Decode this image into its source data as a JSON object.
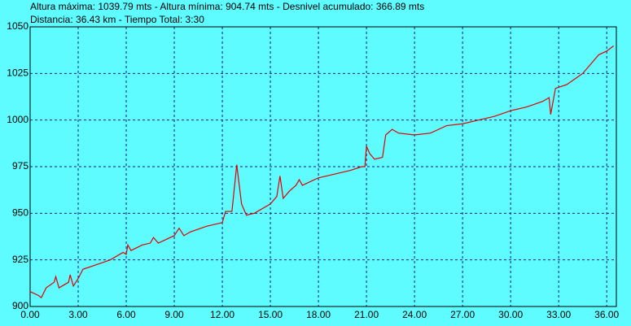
{
  "chart_data": {
    "type": "line",
    "header": [
      "Altura máxima: 1039.79 mts - Altura mínima: 904.74 mts - Desnivel acumulado: 366.89 mts",
      "Distancia: 36.43 km - Tiempo Total: 3:30"
    ],
    "x": [
      0,
      0.5,
      0.7,
      1.0,
      1.5,
      1.6,
      1.8,
      2.4,
      2.5,
      2.7,
      3.0,
      3.3,
      4,
      5,
      5.8,
      6.0,
      6.1,
      6.3,
      7,
      7.5,
      7.7,
      8,
      8.5,
      9,
      9.3,
      9.6,
      10,
      11,
      12,
      12.2,
      12.6,
      12.9,
      13.2,
      13.5,
      14,
      15,
      15.4,
      15.6,
      15.8,
      16.2,
      16.6,
      16.8,
      17,
      18,
      19,
      20,
      20.7,
      20.9,
      21.0,
      21.2,
      21.5,
      22,
      22.2,
      22.6,
      23,
      24,
      25,
      25.5,
      26,
      27,
      28,
      29,
      30,
      31,
      32,
      32.4,
      32.5,
      32.8,
      33.5,
      34,
      34.5,
      35,
      35.5,
      36,
      36.43
    ],
    "series": [
      {
        "name": "Altura",
        "color": "#e00000",
        "values": [
          908,
          906,
          904.74,
          910,
          913,
          916,
          910,
          913,
          917,
          911,
          915,
          920,
          922,
          925,
          929,
          928,
          933,
          930,
          933,
          934,
          937,
          934,
          936,
          938,
          942,
          938,
          940,
          943,
          945,
          951,
          951,
          976,
          955,
          949,
          950,
          955,
          959,
          970,
          958,
          962,
          965,
          968,
          965,
          969,
          971,
          973,
          975,
          975,
          986,
          982,
          979,
          980,
          992,
          995,
          993,
          992,
          993,
          995,
          997,
          998,
          1000,
          1002,
          1005,
          1007,
          1010,
          1012,
          1003,
          1017,
          1019,
          1022,
          1025,
          1030,
          1035,
          1037,
          1039.79
        ]
      }
    ],
    "xlim": [
      0,
      36.6
    ],
    "ylim": [
      900,
      1050
    ],
    "xticks": [
      {
        "value": 0,
        "label": "0.00"
      },
      {
        "value": 3,
        "label": "3.00"
      },
      {
        "value": 6,
        "label": "6.00"
      },
      {
        "value": 9,
        "label": "9.00"
      },
      {
        "value": 12,
        "label": "12.00"
      },
      {
        "value": 15,
        "label": "15.00"
      },
      {
        "value": 18,
        "label": "18.00"
      },
      {
        "value": 21,
        "label": "21.00"
      },
      {
        "value": 24,
        "label": "24.00"
      },
      {
        "value": 27,
        "label": "27.00"
      },
      {
        "value": 30,
        "label": "30.00"
      },
      {
        "value": 33,
        "label": "33.00"
      },
      {
        "value": 36,
        "label": "36.00"
      }
    ],
    "yticks": [
      900,
      925,
      950,
      975,
      1000,
      1025,
      1050
    ],
    "grid": true,
    "background": "#5ffcff",
    "grid_color": "#1a1a8c"
  }
}
